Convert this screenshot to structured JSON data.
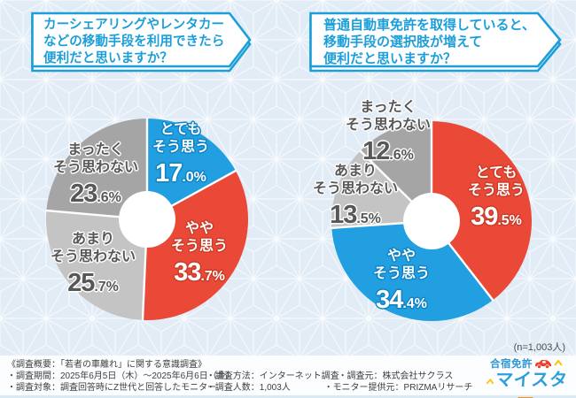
{
  "palette": {
    "background": "#e1ecf6",
    "pattern_line": "#ffffff",
    "banner_blue": "#1b9ed9",
    "slice_blue": "#219fe0",
    "slice_red": "#ea4937",
    "slice_light_gray": "#c4c4c4",
    "slice_gray": "#a5a5a5",
    "gray_label_text": "#575757",
    "footer_text": "#3f3f3f"
  },
  "questions": [
    {
      "lines": [
        "カーシェアリングやレンタカー",
        "などの移動手段を利用できたら",
        "便利だと思いますか？"
      ]
    },
    {
      "lines": [
        "普通自動車免許を取得していると、",
        "移動手段の選択肢が増えて",
        "便利だと思いますか？"
      ]
    }
  ],
  "chart_data": [
    {
      "type": "pie",
      "title": "カーシェアリングやレンタカーなどの移動手段を利用できたら便利だと思いますか？",
      "categories": [
        "とてもそう思う",
        "ややそう思う",
        "あまりそう思わない",
        "まったくそう思わない"
      ],
      "values": [
        17.0,
        33.7,
        25.7,
        23.6
      ],
      "colors": [
        "#219fe0",
        "#ea4937",
        "#c4c4c4",
        "#a5a5a5"
      ],
      "donut": true,
      "donut_hole_ratio": 0.28,
      "start_angle_deg": 0,
      "direction": "clockwise",
      "labels": [
        {
          "lines": [
            "とても",
            "そう思う"
          ],
          "pct_main": "17",
          "pct_rest": ".0%"
        },
        {
          "lines": [
            "やや",
            "そう思う"
          ],
          "pct_main": "33",
          "pct_rest": ".7%"
        },
        {
          "lines": [
            "あまり",
            "そう思わない"
          ],
          "pct_main": "25",
          "pct_rest": ".7%"
        },
        {
          "lines": [
            "まったく",
            "そう思わない"
          ],
          "pct_main": "23",
          "pct_rest": ".6%"
        }
      ]
    },
    {
      "type": "pie",
      "title": "普通自動車免許を取得していると、移動手段の選択肢が増えて便利だと思いますか？",
      "categories": [
        "とてもそう思う",
        "ややそう思う",
        "あまりそう思わない",
        "まったくそう思わない"
      ],
      "values": [
        39.5,
        34.4,
        13.5,
        12.6
      ],
      "colors": [
        "#ea4937",
        "#219fe0",
        "#c4c4c4",
        "#a5a5a5"
      ],
      "donut": true,
      "donut_hole_ratio": 0.28,
      "start_angle_deg": 0,
      "direction": "clockwise",
      "labels": [
        {
          "lines": [
            "とても",
            "そう思う"
          ],
          "pct_main": "39",
          "pct_rest": ".5%"
        },
        {
          "lines": [
            "やや",
            "そう思う"
          ],
          "pct_main": "34",
          "pct_rest": ".4%"
        },
        {
          "lines": [
            "あまり",
            "そう思わない"
          ],
          "pct_main": "13",
          "pct_rest": ".5%"
        },
        {
          "lines": [
            "まったく",
            "そう思わない"
          ],
          "pct_main": "12",
          "pct_rest": ".6%"
        }
      ]
    }
  ],
  "sample_note": "(n=1,003人)",
  "footer": {
    "line1": "《調査概要：「若者の車離れ」に関する意識調査》",
    "row2": [
      "・調査期間：2025年6月5日（木）～2025年6月6日（金）",
      "・調査方法：インターネット調査",
      "・調査元：株式会社サクラス"
    ],
    "row3": [
      "・調査対象：調査回答時にZ世代と回答したモニター",
      "・調査人数：1,003人",
      "・モニター提供元：PRIZMAリサーチ"
    ]
  },
  "logo": {
    "top": "合宿免許",
    "main": "マイスタ",
    "dash": "ー"
  }
}
